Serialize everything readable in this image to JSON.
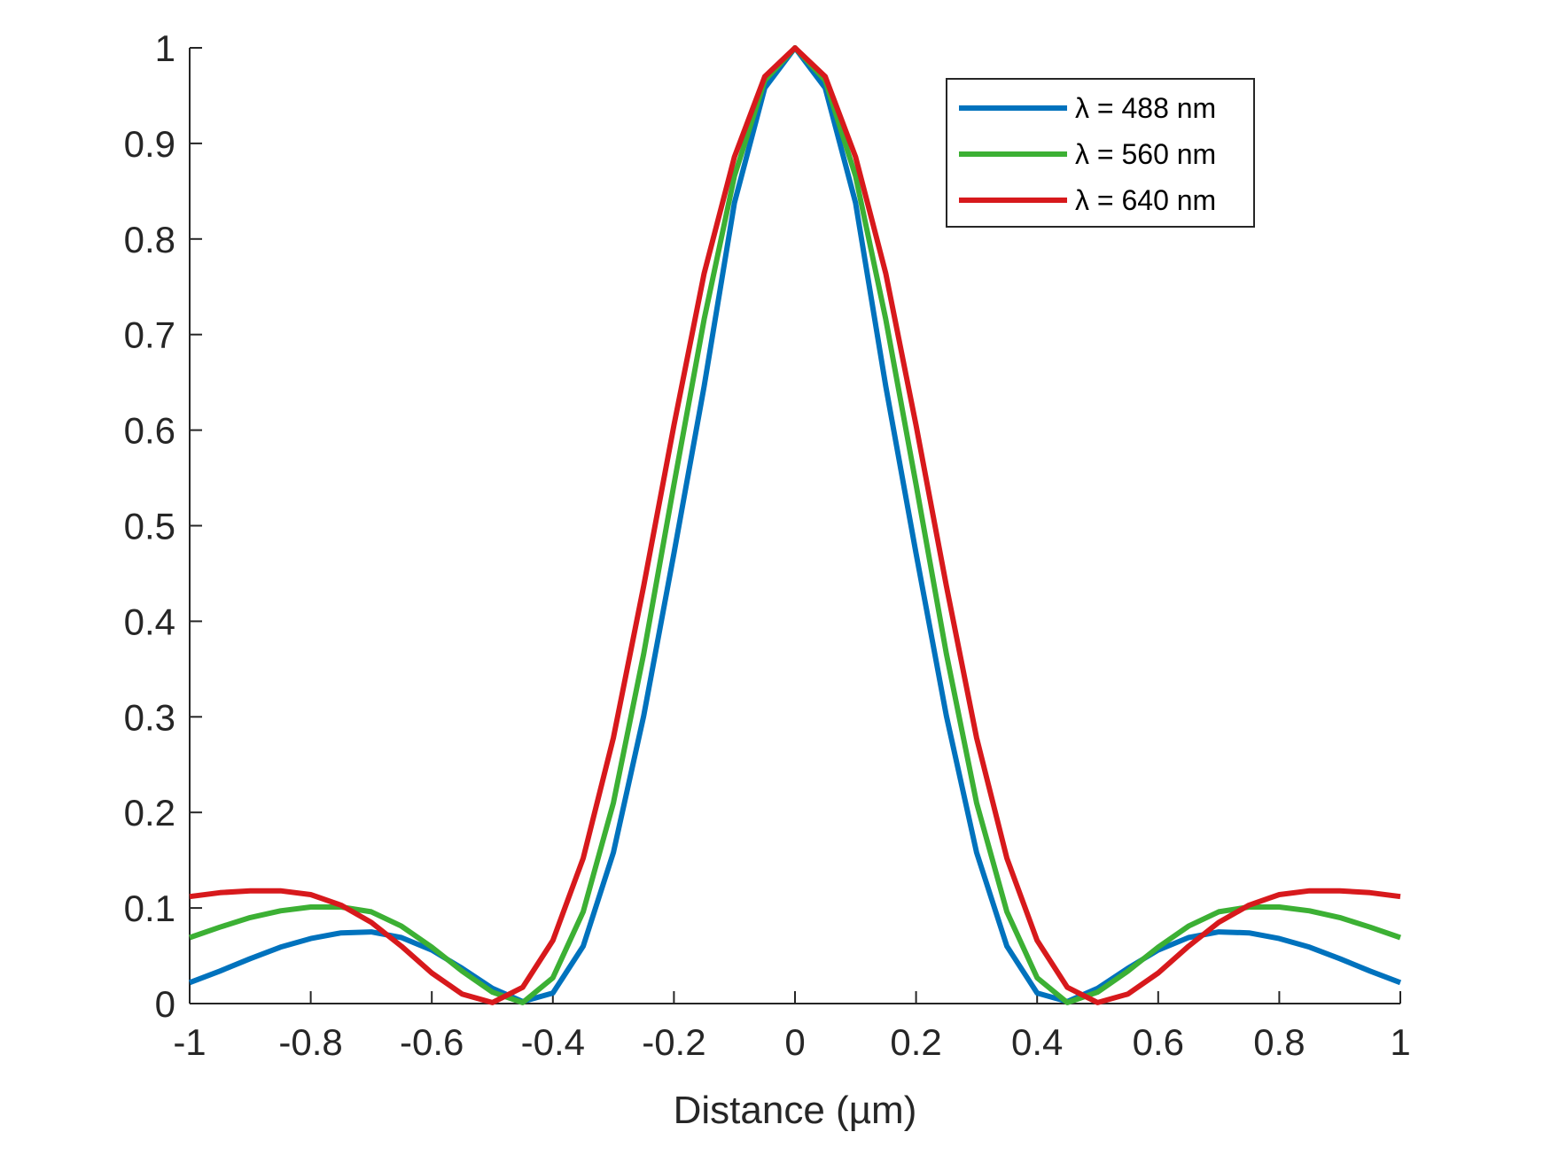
{
  "chart_data": {
    "type": "line",
    "title": "",
    "xlabel": "Distance (µm)",
    "ylabel": "",
    "xlim": [
      -1,
      1
    ],
    "ylim": [
      0,
      1
    ],
    "x_ticks": [
      -1,
      -0.8,
      -0.6,
      -0.4,
      -0.2,
      0,
      0.2,
      0.4,
      0.6,
      0.8,
      1
    ],
    "x_tick_labels": [
      "-1",
      "-0.8",
      "-0.6",
      "-0.4",
      "-0.2",
      "0",
      "0.2",
      "0.4",
      "0.6",
      "0.8",
      "1"
    ],
    "y_ticks": [
      0,
      0.1,
      0.2,
      0.3,
      0.4,
      0.5,
      0.6,
      0.7,
      0.8,
      0.9,
      1
    ],
    "y_tick_labels": [
      "0",
      "0.1",
      "0.2",
      "0.3",
      "0.4",
      "0.5",
      "0.6",
      "0.7",
      "0.8",
      "0.9",
      "1"
    ],
    "grid": false,
    "legend_position": "top-right",
    "x": [
      -1,
      -0.95,
      -0.9,
      -0.85,
      -0.8,
      -0.75,
      -0.7,
      -0.65,
      -0.6,
      -0.55,
      -0.5,
      -0.45,
      -0.4,
      -0.35,
      -0.3,
      -0.25,
      -0.2,
      -0.15,
      -0.1,
      -0.05,
      0,
      0.05,
      0.1,
      0.15,
      0.2,
      0.25,
      0.3,
      0.35,
      0.4,
      0.45,
      0.5,
      0.55,
      0.6,
      0.65,
      0.7,
      0.75,
      0.8,
      0.85,
      0.9,
      0.95,
      1
    ],
    "series": [
      {
        "name": "λ = 488 nm",
        "color": "#0072BD",
        "values": [
          0.022,
          0.034,
          0.047,
          0.059,
          0.068,
          0.074,
          0.075,
          0.069,
          0.056,
          0.037,
          0.016,
          0.002,
          0.011,
          0.06,
          0.158,
          0.301,
          0.471,
          0.646,
          0.838,
          0.958,
          1.0,
          0.958,
          0.838,
          0.646,
          0.471,
          0.301,
          0.158,
          0.06,
          0.011,
          0.002,
          0.016,
          0.037,
          0.056,
          0.069,
          0.075,
          0.074,
          0.068,
          0.059,
          0.047,
          0.034,
          0.022
        ]
      },
      {
        "name": "λ = 560 nm",
        "color": "#3CB034",
        "values": [
          0.069,
          0.08,
          0.09,
          0.097,
          0.101,
          0.101,
          0.096,
          0.081,
          0.059,
          0.034,
          0.012,
          0.001,
          0.027,
          0.096,
          0.21,
          0.366,
          0.543,
          0.716,
          0.866,
          0.966,
          1.0,
          0.966,
          0.866,
          0.716,
          0.543,
          0.366,
          0.21,
          0.096,
          0.027,
          0.001,
          0.012,
          0.034,
          0.059,
          0.081,
          0.096,
          0.101,
          0.101,
          0.097,
          0.09,
          0.08,
          0.069
        ]
      },
      {
        "name": "λ = 640 nm",
        "color": "#D7191C",
        "values": [
          0.112,
          0.116,
          0.118,
          0.118,
          0.114,
          0.103,
          0.085,
          0.06,
          0.032,
          0.01,
          0.001,
          0.017,
          0.066,
          0.152,
          0.278,
          0.437,
          0.605,
          0.764,
          0.886,
          0.97,
          1.0,
          0.97,
          0.886,
          0.764,
          0.605,
          0.437,
          0.278,
          0.152,
          0.066,
          0.017,
          0.001,
          0.01,
          0.032,
          0.06,
          0.085,
          0.103,
          0.114,
          0.118,
          0.118,
          0.116,
          0.112
        ]
      }
    ]
  }
}
